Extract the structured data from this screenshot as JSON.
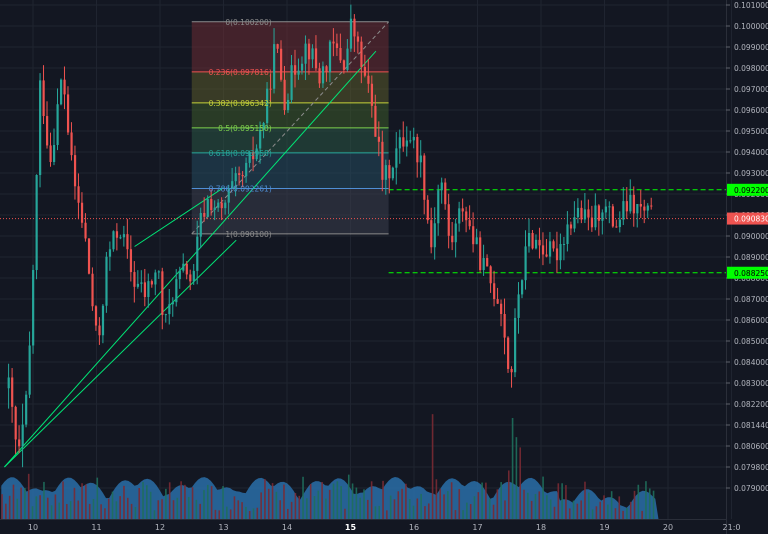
{
  "chart_data": {
    "type": "candlestick",
    "instrument_price_scale": "right",
    "x_ticks": [
      "10",
      "11",
      "12",
      "13",
      "14",
      "15",
      "16",
      "17",
      "18",
      "19",
      "20",
      "21:0"
    ],
    "x_ticks_bold": [
      "15"
    ],
    "y_ticks": [
      "0.101000",
      "0.100000",
      "0.099000",
      "0.098000",
      "0.097000",
      "0.096000",
      "0.095000",
      "0.094000",
      "0.093000",
      "0.092000",
      "0.091000",
      "0.090000",
      "0.089000",
      "0.088000",
      "0.087000",
      "0.086000",
      "0.085000",
      "0.084000",
      "0.083000",
      "0.082200",
      "0.081440",
      "0.080600",
      "0.079800",
      "0.079000"
    ],
    "ylim": [
      0.0785,
      0.1023
    ],
    "price_labels": [
      {
        "text": "0.092200",
        "value": 0.0922,
        "color": "#00ff00",
        "text_color": "#000000"
      },
      {
        "text": "0.090830",
        "value": 0.09083,
        "color": "#ef5350",
        "text_color": "#ffffff"
      },
      {
        "text": "0.088250",
        "value": 0.08825,
        "color": "#00ff00",
        "text_color": "#000000"
      }
    ],
    "fibonacci": {
      "levels": [
        {
          "label": "0(0.100200)",
          "ratio": 0,
          "value": 0.1002,
          "color": "#8c8c8c"
        },
        {
          "label": "0.236(0.097816)",
          "ratio": 0.236,
          "value": 0.097816,
          "color": "#ef5350"
        },
        {
          "label": "0.382(0.096342)",
          "ratio": 0.382,
          "value": 0.096342,
          "color": "#c6d23a"
        },
        {
          "label": "0.5(0.095150)",
          "ratio": 0.5,
          "value": 0.09515,
          "color": "#7fd34e"
        },
        {
          "label": "0.618(0.093958)",
          "ratio": 0.618,
          "value": 0.093958,
          "color": "#26a69a"
        },
        {
          "label": "0.786(0.092261)",
          "ratio": 0.786,
          "value": 0.092261,
          "color": "#4f8fd6"
        },
        {
          "label": "1(0.090100)",
          "ratio": 1,
          "value": 0.0901,
          "color": "#8c8c8c"
        }
      ],
      "zone_colors": [
        "#6b2b33",
        "#5a5a2a",
        "#3d5a2a",
        "#2a5544",
        "#244a5e",
        "#3a3e4c"
      ]
    },
    "horizontal_lines": [
      {
        "value": 0.0922,
        "color": "#00ff00",
        "style": "dashed"
      },
      {
        "value": 0.09083,
        "color": "#ef5350",
        "style": "dotted"
      },
      {
        "value": 0.08825,
        "color": "#00ff00",
        "style": "dashed"
      }
    ],
    "channel_lines_color": "#00e676",
    "candle_colors": {
      "up": "#26a69a",
      "down": "#ef5350"
    },
    "volume_area_color": "#2a6fa8",
    "series_path": [
      [
        9.6,
        0.0828
      ],
      [
        9.75,
        0.08
      ],
      [
        9.9,
        0.0825
      ],
      [
        10.0,
        0.0895
      ],
      [
        10.1,
        0.0975
      ],
      [
        10.25,
        0.0935
      ],
      [
        10.45,
        0.0978
      ],
      [
        10.6,
        0.093
      ],
      [
        10.8,
        0.09
      ],
      [
        11.0,
        0.0845
      ],
      [
        11.15,
        0.089
      ],
      [
        11.35,
        0.0905
      ],
      [
        11.55,
        0.088
      ],
      [
        11.75,
        0.0872
      ],
      [
        11.95,
        0.0885
      ],
      [
        12.05,
        0.0855
      ],
      [
        12.2,
        0.0875
      ],
      [
        12.4,
        0.0885
      ],
      [
        12.5,
        0.0875
      ],
      [
        12.6,
        0.0905
      ],
      [
        12.75,
        0.0918
      ],
      [
        12.95,
        0.091
      ],
      [
        13.1,
        0.0922
      ],
      [
        13.3,
        0.0928
      ],
      [
        13.5,
        0.0942
      ],
      [
        13.65,
        0.096
      ],
      [
        13.8,
        0.0992
      ],
      [
        13.95,
        0.0965
      ],
      [
        14.1,
        0.098
      ],
      [
        14.3,
        0.0992
      ],
      [
        14.5,
        0.0975
      ],
      [
        14.7,
        0.099
      ],
      [
        14.9,
        0.0982
      ],
      [
        15.0,
        0.1002
      ],
      [
        15.15,
        0.0982
      ],
      [
        15.35,
        0.0958
      ],
      [
        15.5,
        0.0925
      ],
      [
        15.7,
        0.094
      ],
      [
        15.9,
        0.095
      ],
      [
        16.1,
        0.0935
      ],
      [
        16.25,
        0.0895
      ],
      [
        16.4,
        0.093
      ],
      [
        16.55,
        0.0895
      ],
      [
        16.75,
        0.0915
      ],
      [
        16.95,
        0.0895
      ],
      [
        17.15,
        0.088
      ],
      [
        17.35,
        0.0868
      ],
      [
        17.5,
        0.083
      ],
      [
        17.62,
        0.0872
      ],
      [
        17.8,
        0.09
      ],
      [
        18.0,
        0.0895
      ],
      [
        18.2,
        0.089
      ],
      [
        18.4,
        0.0905
      ],
      [
        18.55,
        0.0912
      ],
      [
        18.75,
        0.0905
      ],
      [
        18.95,
        0.0915
      ],
      [
        19.15,
        0.0905
      ],
      [
        19.35,
        0.0915
      ],
      [
        19.55,
        0.0912
      ],
      [
        19.75,
        0.0909
      ]
    ],
    "volume_spikes": [
      [
        9.9,
        3
      ],
      [
        10.1,
        2.5
      ],
      [
        11.0,
        1.5
      ],
      [
        12.6,
        1.2
      ],
      [
        13.6,
        1.3
      ],
      [
        14.2,
        1.2
      ],
      [
        15.0,
        1.8
      ],
      [
        15.5,
        1.6
      ],
      [
        16.3,
        4.5
      ],
      [
        16.55,
        2.5
      ],
      [
        17.5,
        3.8
      ],
      [
        17.65,
        2.8
      ],
      [
        18.0,
        1.4
      ],
      [
        19.8,
        0.8
      ]
    ]
  }
}
